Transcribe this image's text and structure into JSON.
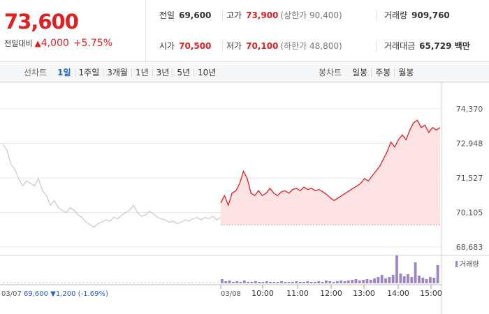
{
  "quote": {
    "price": "73,600",
    "change_label": "전일대비",
    "change_arrow": "▲",
    "change_value": "4,000",
    "change_pct": "+5.75%"
  },
  "stats": {
    "prev_close": {
      "label": "전일",
      "value": "69,600"
    },
    "high": {
      "label": "고가",
      "value": "73,900",
      "sub": "(상한가 90,400)"
    },
    "volume": {
      "label": "거래량",
      "value": "909,760"
    },
    "open": {
      "label": "시가",
      "value": "70,500"
    },
    "low": {
      "label": "저가",
      "value": "70,100",
      "sub": "(하한가 48,800)"
    },
    "amount": {
      "label": "거래대금",
      "value": "65,729 백만"
    }
  },
  "tabs": {
    "line_title": "선차트",
    "line": [
      "1일",
      "1주일",
      "3개월",
      "1년",
      "3년",
      "5년",
      "10년"
    ],
    "line_active": 0,
    "candle_title": "봉차트",
    "candle": [
      "일봉",
      "주봉",
      "월봉"
    ]
  },
  "colors": {
    "up": "#e02020",
    "prev_line": "#c8c8c8",
    "volume": "#9b86c8",
    "fill": "#fde3e3",
    "grid": "#e8e8e8"
  },
  "chart_data": {
    "type": "line",
    "price_axis": {
      "min": 68683,
      "max": 74370,
      "ticks": [
        "74,370",
        "72,948",
        "71,527",
        "70,105",
        "68,683"
      ]
    },
    "time_ticks": [
      "10:00",
      "11:00",
      "12:00",
      "13:00",
      "14:00",
      "15:00"
    ],
    "prev_day": {
      "date": "03/07",
      "close": "69,600",
      "change_arrow": "▼",
      "change": "1,200",
      "change_pct": "(-1.69%)",
      "values": [
        72900,
        72700,
        72100,
        71900,
        71500,
        71200,
        71400,
        71300,
        71200,
        71500,
        71000,
        70800,
        70400,
        70600,
        70300,
        70200,
        70100,
        70300,
        70200,
        70000,
        69900,
        69700,
        69600,
        69500,
        69650,
        69700,
        69800,
        69750,
        69900,
        69850,
        70000,
        70100,
        70200,
        70400,
        70100,
        69950,
        70000,
        70150,
        70050,
        69900,
        69850,
        69800,
        69700,
        69750,
        69650,
        69700,
        69800,
        69750,
        69850,
        69900,
        69800,
        69900,
        69850,
        69950,
        69800,
        69900
      ]
    },
    "today": {
      "date": "03/08",
      "reference": 69600,
      "values": [
        70500,
        70800,
        70400,
        70900,
        71000,
        71300,
        71800,
        71500,
        70900,
        70800,
        71000,
        70800,
        70900,
        71100,
        70900,
        70800,
        70950,
        71000,
        70900,
        71050,
        71100,
        71000,
        71150,
        71050,
        71100,
        71000,
        71050,
        70950,
        70850,
        70700,
        70600,
        70700,
        70800,
        70900,
        71000,
        71100,
        71200,
        71300,
        71500,
        71400,
        71600,
        71800,
        72000,
        72300,
        72600,
        73000,
        72800,
        73100,
        73300,
        73100,
        73500,
        73800,
        73900,
        73600,
        73700,
        73400,
        73600,
        73500,
        73600
      ],
      "volume": [
        6,
        3,
        4,
        2,
        3,
        2,
        4,
        2,
        2,
        3,
        2,
        2,
        3,
        2,
        2,
        2,
        3,
        2,
        2,
        2,
        3,
        2,
        2,
        3,
        2,
        2,
        3,
        2,
        4,
        3,
        2,
        3,
        4,
        3,
        4,
        5,
        6,
        4,
        5,
        6,
        5,
        7,
        9,
        12,
        7,
        9,
        12,
        40,
        14,
        10,
        13,
        9,
        30,
        11,
        8,
        6,
        9,
        8,
        26
      ],
      "volume_label": "거래량"
    }
  }
}
